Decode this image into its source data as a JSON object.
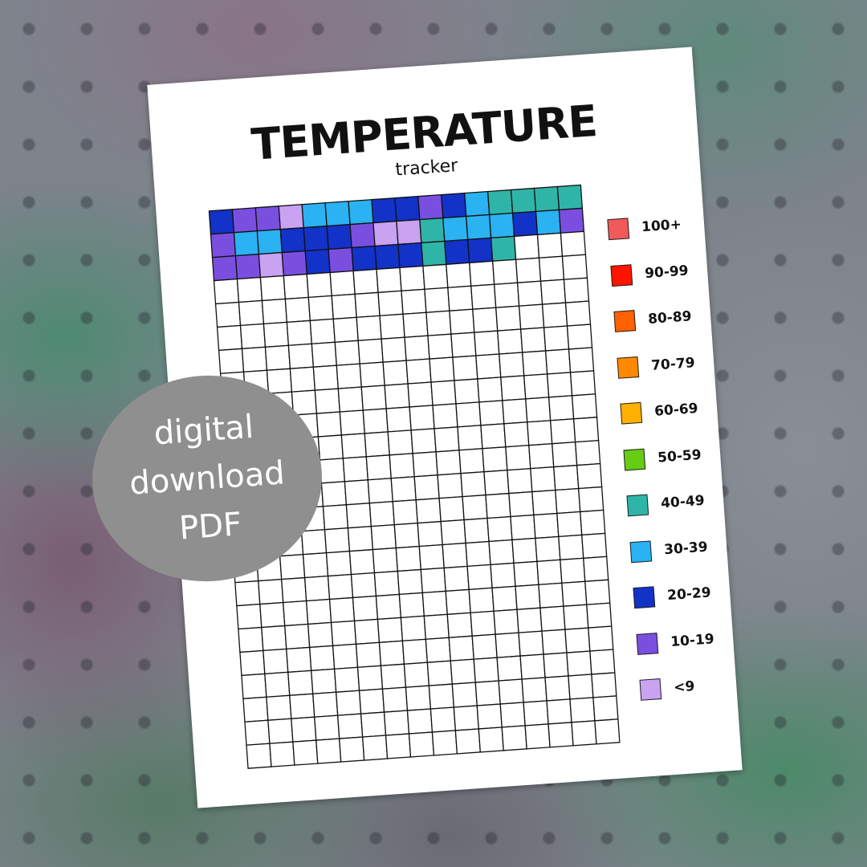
{
  "header": {
    "title": "TEMPERATURE",
    "subtitle": "tracker"
  },
  "badge": {
    "lines": [
      "digital",
      "download",
      "PDF"
    ]
  },
  "legend": [
    {
      "label": "100+",
      "color": "#f25a5a"
    },
    {
      "label": "90-99",
      "color": "#ff1400"
    },
    {
      "label": "80-89",
      "color": "#ff6000"
    },
    {
      "label": "70-79",
      "color": "#ff8a00"
    },
    {
      "label": "60-69",
      "color": "#ffb000"
    },
    {
      "label": "50-59",
      "color": "#66cc14"
    },
    {
      "label": "40-49",
      "color": "#2fb5a8"
    },
    {
      "label": "30-39",
      "color": "#2ab2f2"
    },
    {
      "label": "20-29",
      "color": "#1232c8"
    },
    {
      "label": "10-19",
      "color": "#7a4fe0"
    },
    {
      "label": "<9",
      "color": "#c9a2f2"
    }
  ],
  "grid": {
    "columns": 16,
    "rows": 24,
    "filled": [
      [
        8,
        9,
        9,
        10,
        7,
        7,
        7,
        8,
        8,
        9,
        8,
        7,
        6,
        6,
        6,
        6
      ],
      [
        9,
        7,
        7,
        8,
        8,
        8,
        9,
        10,
        10,
        6,
        7,
        7,
        7,
        8,
        7,
        9
      ],
      [
        9,
        9,
        10,
        9,
        8,
        9,
        8,
        8,
        8,
        6,
        8,
        8,
        6,
        null,
        null,
        null
      ]
    ]
  }
}
